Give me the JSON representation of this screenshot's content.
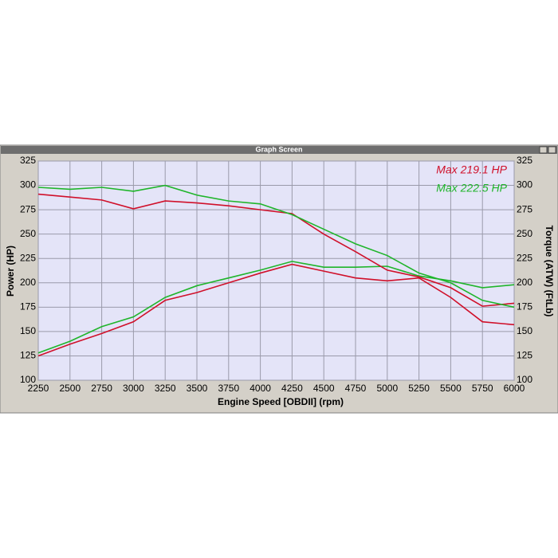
{
  "chart_data": {
    "type": "line",
    "title": "Graph Screen",
    "x_label": "Engine Speed [OBDII] (rpm)",
    "y_label": "Power (HP)",
    "y2_label": "Torque (ATW) (FtLb)",
    "annotations": [
      {
        "text": "Max 219.1 HP",
        "color": "#d0102a"
      },
      {
        "text": "Max 222.5 HP",
        "color": "#1fb52a"
      }
    ],
    "x": [
      2250,
      2500,
      2750,
      3000,
      3250,
      3500,
      3750,
      4000,
      4250,
      4500,
      4750,
      5000,
      5250,
      5500,
      5750,
      6000
    ],
    "series": [
      {
        "color": "#d0102a",
        "values": [
          125,
          137,
          148,
          160,
          182,
          190,
          200,
          210,
          219,
          212,
          205,
          202,
          205,
          185,
          160,
          157
        ]
      },
      {
        "color": "#1fb52a",
        "values": [
          128,
          140,
          155,
          165,
          185,
          197,
          205,
          213,
          222,
          216,
          216,
          217,
          207,
          202,
          195,
          198
        ]
      },
      {
        "color": "#d0102a",
        "axis": "y2",
        "values": [
          291,
          288,
          285,
          276,
          284,
          282,
          279,
          275,
          271,
          250,
          232,
          213,
          206,
          195,
          176,
          179
        ]
      },
      {
        "color": "#1fb52a",
        "axis": "y2",
        "values": [
          298,
          296,
          298,
          294,
          300,
          290,
          284,
          281,
          270,
          255,
          240,
          228,
          210,
          200,
          182,
          175
        ]
      }
    ],
    "xlim": [
      2250,
      6000
    ],
    "xticks": [
      2250,
      2500,
      2750,
      3000,
      3250,
      3500,
      3750,
      4000,
      4250,
      4500,
      4750,
      5000,
      5250,
      5500,
      5750,
      6000
    ],
    "ylim": [
      100,
      325
    ],
    "yticks": [
      100,
      125,
      150,
      175,
      200,
      225,
      250,
      275,
      300,
      325
    ],
    "y2lim": [
      100,
      325
    ],
    "y2ticks": [
      100,
      125,
      150,
      175,
      200,
      225,
      250,
      275,
      300,
      325
    ],
    "grid": true
  }
}
